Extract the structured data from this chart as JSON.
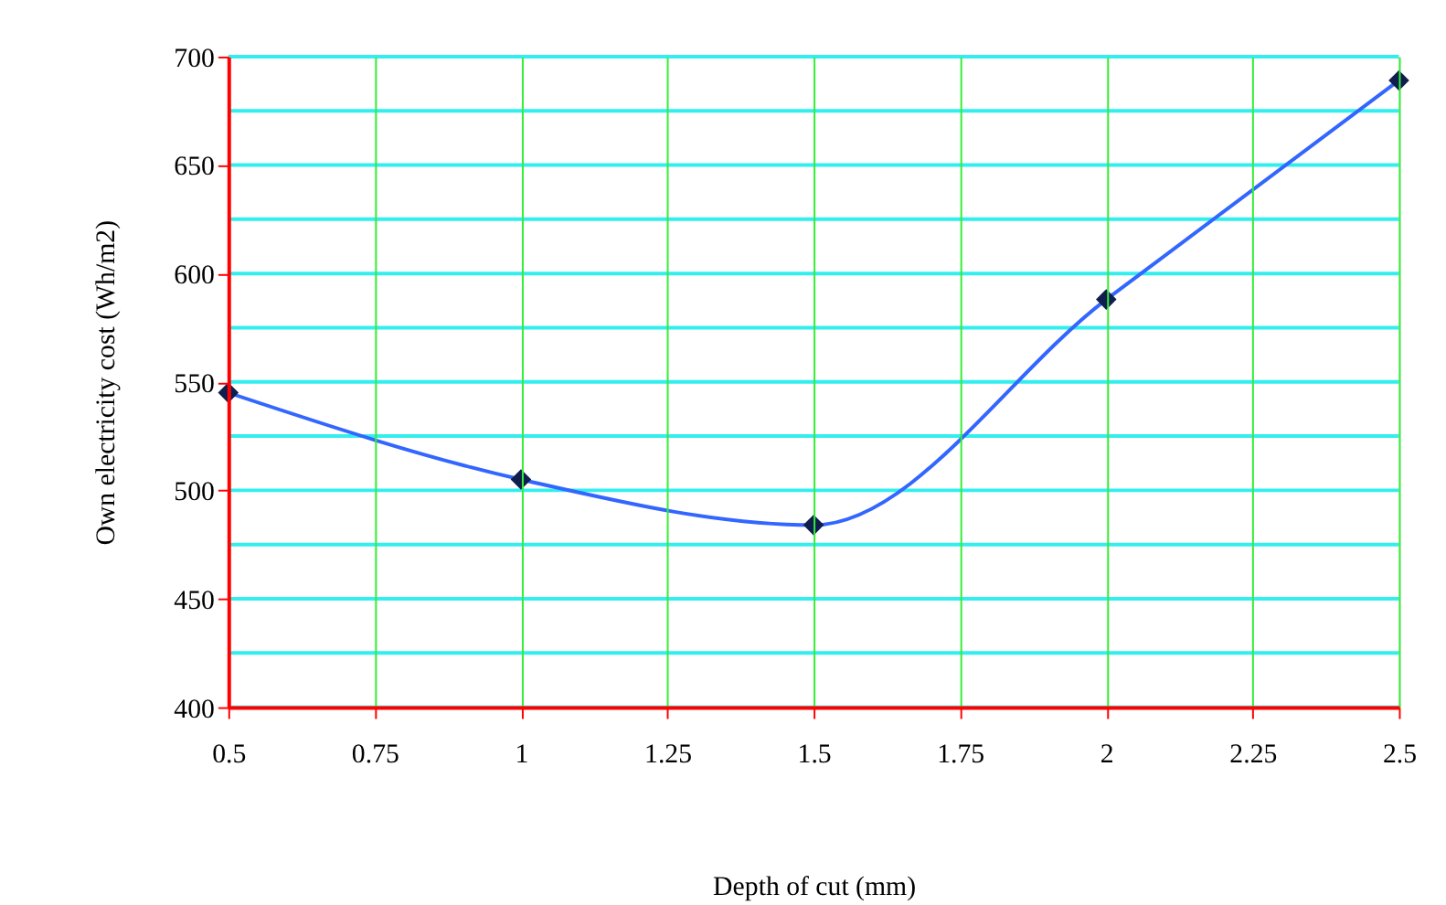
{
  "chart_data": {
    "type": "line",
    "xlabel": "Depth of cut (mm)",
    "ylabel": "Own electricity cost (Wh/m2)",
    "x": [
      0.5,
      1,
      1.5,
      2,
      2.5
    ],
    "series": [
      {
        "color": "#3366ff",
        "values": [
          545,
          505,
          484,
          588,
          689
        ]
      }
    ],
    "xlim": [
      0.5,
      2.5
    ],
    "xticks": [
      0.5,
      0.75,
      1,
      1.25,
      1.5,
      1.75,
      2,
      2.25,
      2.5
    ],
    "ylim": [
      400,
      700
    ],
    "yticks": [
      400,
      450,
      500,
      550,
      600,
      650,
      700
    ],
    "grid": true,
    "marker": "diamond",
    "line_style": "solid"
  }
}
